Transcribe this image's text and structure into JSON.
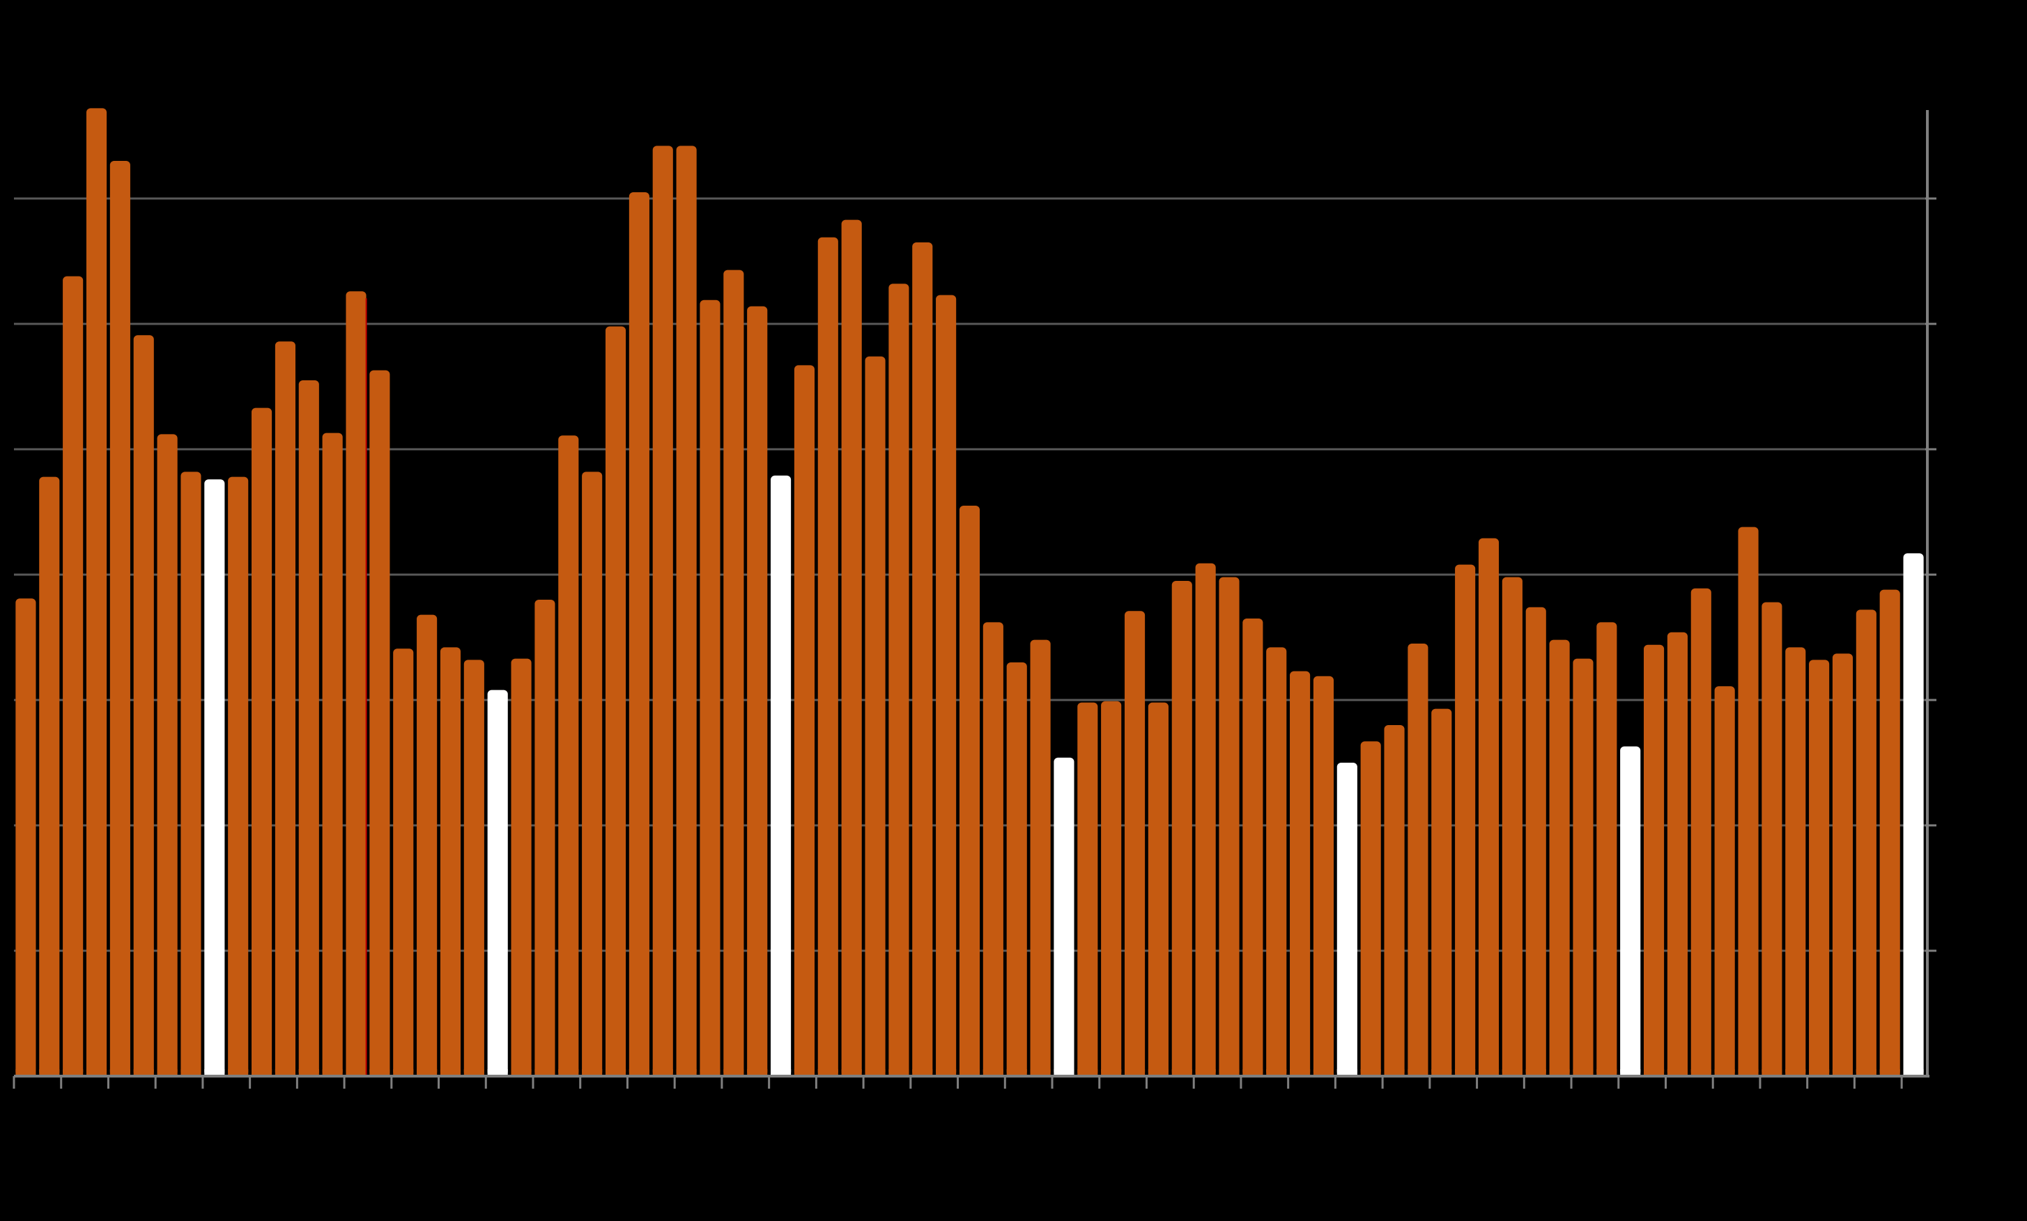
{
  "chart_data": {
    "type": "bar",
    "title": "",
    "xlabel": "",
    "ylabel": "",
    "ylim": [
      0,
      7.7
    ],
    "grid": true,
    "y_axis_side": "right",
    "colors": {
      "background": "#000000",
      "bar": "#c55a11",
      "bar_highlight": "#ffffff",
      "gridline": "#595959",
      "axis": "#7f7f7f",
      "annotation_line": "#c00000"
    },
    "values": [
      3.81,
      4.78,
      6.38,
      7.72,
      7.3,
      5.91,
      5.12,
      4.82,
      4.76,
      4.78,
      5.33,
      5.86,
      5.55,
      5.13,
      6.26,
      5.63,
      3.41,
      3.68,
      3.42,
      3.32,
      3.08,
      3.33,
      3.8,
      5.11,
      4.82,
      5.98,
      7.05,
      7.42,
      7.42,
      6.19,
      6.43,
      6.14,
      4.79,
      5.67,
      6.69,
      6.83,
      5.74,
      6.32,
      6.65,
      6.23,
      4.55,
      3.62,
      3.3,
      3.48,
      2.54,
      2.98,
      2.99,
      3.71,
      2.98,
      3.95,
      4.09,
      3.98,
      3.65,
      3.42,
      3.23,
      3.19,
      2.5,
      2.67,
      2.8,
      3.45,
      2.93,
      4.08,
      4.29,
      3.98,
      3.74,
      3.48,
      3.33,
      3.62,
      2.63,
      3.44,
      3.54,
      3.89,
      3.11,
      4.38,
      3.78,
      3.42,
      3.32,
      3.37,
      3.72,
      3.88,
      4.17
    ],
    "highlight_indices": [
      8,
      20,
      32,
      44,
      56,
      68,
      80
    ],
    "annotation_after_index": 14
  }
}
